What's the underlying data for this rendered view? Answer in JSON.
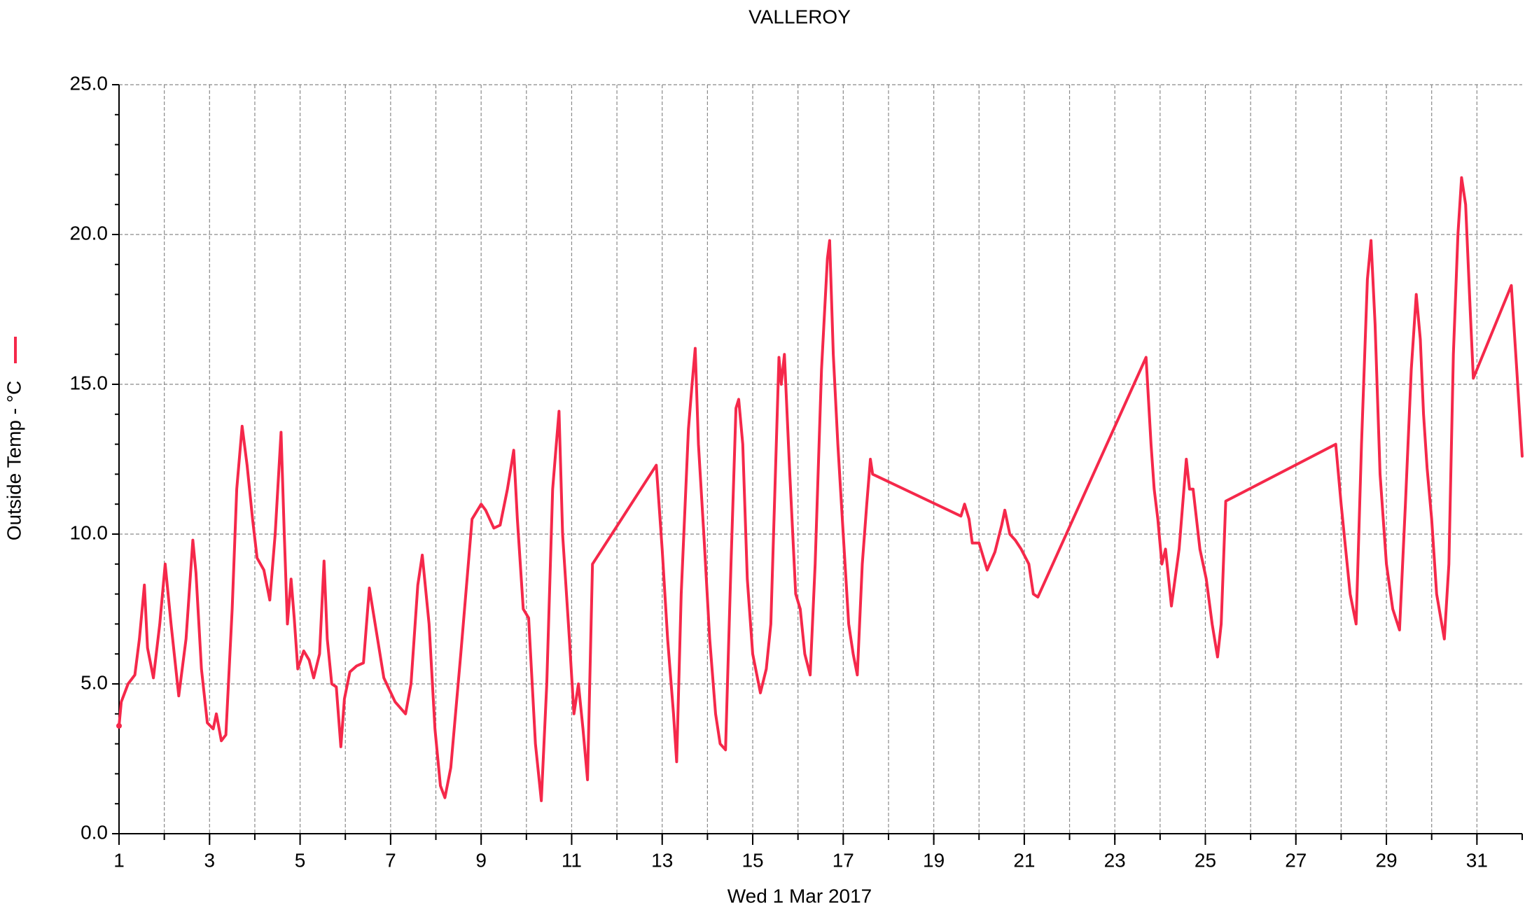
{
  "chart_data": {
    "type": "line",
    "title": "VALLEROY",
    "x_label": "Wed 1 Mar 2017",
    "y_label": "Outside Temp - °C",
    "grid": true,
    "xlim": [
      1,
      32
    ],
    "ylim": [
      0,
      25
    ],
    "xticks": [
      1,
      3,
      5,
      7,
      9,
      11,
      13,
      15,
      17,
      19,
      21,
      23,
      25,
      27,
      29,
      31
    ],
    "xminorticks": [
      1,
      2,
      3,
      4,
      5,
      6,
      7,
      8,
      9,
      10,
      11,
      12,
      13,
      14,
      15,
      16,
      17,
      18,
      19,
      20,
      21,
      22,
      23,
      24,
      25,
      26,
      27,
      28,
      29,
      30,
      31,
      32
    ],
    "yticks": [
      {
        "value": 0,
        "label": "0.0"
      },
      {
        "value": 5,
        "label": "5.0"
      },
      {
        "value": 10,
        "label": "10.0"
      },
      {
        "value": 15,
        "label": "15.0"
      },
      {
        "value": 20,
        "label": "20.0"
      },
      {
        "value": 25,
        "label": "25.0"
      }
    ],
    "yminorticks": [
      0,
      1,
      2,
      3,
      4,
      5,
      6,
      7,
      8,
      9,
      10,
      11,
      12,
      13,
      14,
      15,
      16,
      17,
      18,
      19,
      20,
      21,
      22,
      23,
      24,
      25
    ],
    "x": [
      1.0,
      1.05,
      1.2,
      1.35,
      1.45,
      1.56,
      1.63,
      1.76,
      1.9,
      2.02,
      2.15,
      2.32,
      2.48,
      2.63,
      2.7,
      2.82,
      2.95,
      3.08,
      3.15,
      3.26,
      3.36,
      3.5,
      3.6,
      3.72,
      3.83,
      3.95,
      4.05,
      4.2,
      4.33,
      4.45,
      4.58,
      4.65,
      4.72,
      4.8,
      4.87,
      4.95,
      5.08,
      5.2,
      5.3,
      5.43,
      5.53,
      5.6,
      5.7,
      5.8,
      5.9,
      5.98,
      6.1,
      6.25,
      6.4,
      6.53,
      6.85,
      7.1,
      7.33,
      7.45,
      7.6,
      7.7,
      7.85,
      7.98,
      8.1,
      8.2,
      8.33,
      8.55,
      8.8,
      9.0,
      9.1,
      9.28,
      9.42,
      9.58,
      9.72,
      9.8,
      9.93,
      10.05,
      10.2,
      10.33,
      10.45,
      10.58,
      10.66,
      10.72,
      10.8,
      10.95,
      11.05,
      11.15,
      11.25,
      11.35,
      11.46,
      12.87,
      13.0,
      13.12,
      13.25,
      13.32,
      13.42,
      13.58,
      13.66,
      13.73,
      13.8,
      13.92,
      14.05,
      14.18,
      14.28,
      14.4,
      14.52,
      14.63,
      14.69,
      14.78,
      14.88,
      15.0,
      15.17,
      15.3,
      15.4,
      15.5,
      15.58,
      15.63,
      15.7,
      15.82,
      15.95,
      16.05,
      16.15,
      16.27,
      16.38,
      16.52,
      16.65,
      16.7,
      16.78,
      16.88,
      17.0,
      17.12,
      17.22,
      17.31,
      17.42,
      17.52,
      17.6,
      17.65,
      19.6,
      19.68,
      19.78,
      19.85,
      20.0,
      20.18,
      20.35,
      20.5,
      20.57,
      20.68,
      20.8,
      20.93,
      21.1,
      21.2,
      21.3,
      23.69,
      23.8,
      23.87,
      23.95,
      24.04,
      24.12,
      24.25,
      24.42,
      24.58,
      24.65,
      24.73,
      24.88,
      25.02,
      25.15,
      25.27,
      25.35,
      25.45,
      27.88,
      28.0,
      28.2,
      28.33,
      28.45,
      28.58,
      28.66,
      28.75,
      28.86,
      29.0,
      29.14,
      29.29,
      29.42,
      29.55,
      29.66,
      29.75,
      29.82,
      29.9,
      30.0,
      30.11,
      30.28,
      30.38,
      30.48,
      30.58,
      30.66,
      30.75,
      30.85,
      30.92,
      31.76,
      31.88,
      32.0
    ],
    "series": [
      {
        "name": "Outside Temp - °C",
        "color": "#f5284a",
        "values": [
          3.6,
          4.4,
          5.0,
          5.3,
          6.5,
          8.3,
          6.2,
          5.2,
          7.0,
          9.0,
          7.0,
          4.6,
          6.5,
          9.8,
          8.7,
          5.5,
          3.7,
          3.5,
          4.0,
          3.1,
          3.3,
          7.5,
          11.5,
          13.6,
          12.3,
          10.5,
          9.2,
          8.8,
          7.8,
          10.0,
          13.4,
          10.0,
          7.0,
          8.5,
          7.2,
          5.5,
          6.1,
          5.8,
          5.2,
          6.0,
          9.1,
          6.5,
          5.0,
          4.9,
          2.9,
          4.5,
          5.4,
          5.6,
          5.7,
          8.2,
          5.2,
          4.4,
          4.0,
          5.0,
          8.3,
          9.3,
          7.0,
          3.5,
          1.6,
          1.2,
          2.2,
          6.0,
          10.5,
          11.0,
          10.8,
          10.2,
          10.3,
          11.5,
          12.8,
          10.5,
          7.5,
          7.2,
          3.0,
          1.1,
          5.0,
          11.5,
          13.0,
          14.1,
          10.0,
          6.5,
          4.0,
          5.0,
          3.5,
          1.8,
          9.0,
          12.3,
          9.5,
          6.5,
          4.0,
          2.4,
          8.0,
          13.5,
          15.0,
          16.2,
          13.0,
          10.0,
          6.5,
          4.0,
          3.0,
          2.8,
          9.0,
          14.2,
          14.5,
          13.0,
          8.5,
          6.0,
          4.7,
          5.5,
          7.0,
          12.0,
          15.9,
          15.0,
          16.0,
          12.0,
          8.0,
          7.5,
          6.0,
          5.3,
          9.0,
          15.5,
          19.2,
          19.8,
          16.0,
          13.0,
          10.0,
          7.0,
          6.0,
          5.3,
          9.0,
          11.0,
          12.5,
          12.0,
          10.6,
          11.0,
          10.5,
          9.7,
          9.7,
          8.8,
          9.4,
          10.3,
          10.8,
          10.0,
          9.8,
          9.5,
          9.0,
          8.0,
          7.9,
          15.9,
          13.0,
          11.5,
          10.5,
          9.0,
          9.5,
          7.6,
          9.5,
          12.5,
          11.5,
          11.5,
          9.5,
          8.5,
          7.0,
          5.9,
          7.0,
          11.1,
          13.0,
          11.0,
          8.0,
          7.0,
          13.0,
          18.5,
          19.8,
          17.0,
          12.0,
          9.0,
          7.5,
          6.8,
          11.0,
          15.5,
          18.0,
          16.5,
          14.0,
          12.2,
          10.5,
          8.0,
          6.5,
          9.0,
          16.0,
          20.0,
          21.9,
          21.0,
          17.5,
          15.2,
          18.3,
          15.5,
          12.6
        ]
      }
    ]
  }
}
